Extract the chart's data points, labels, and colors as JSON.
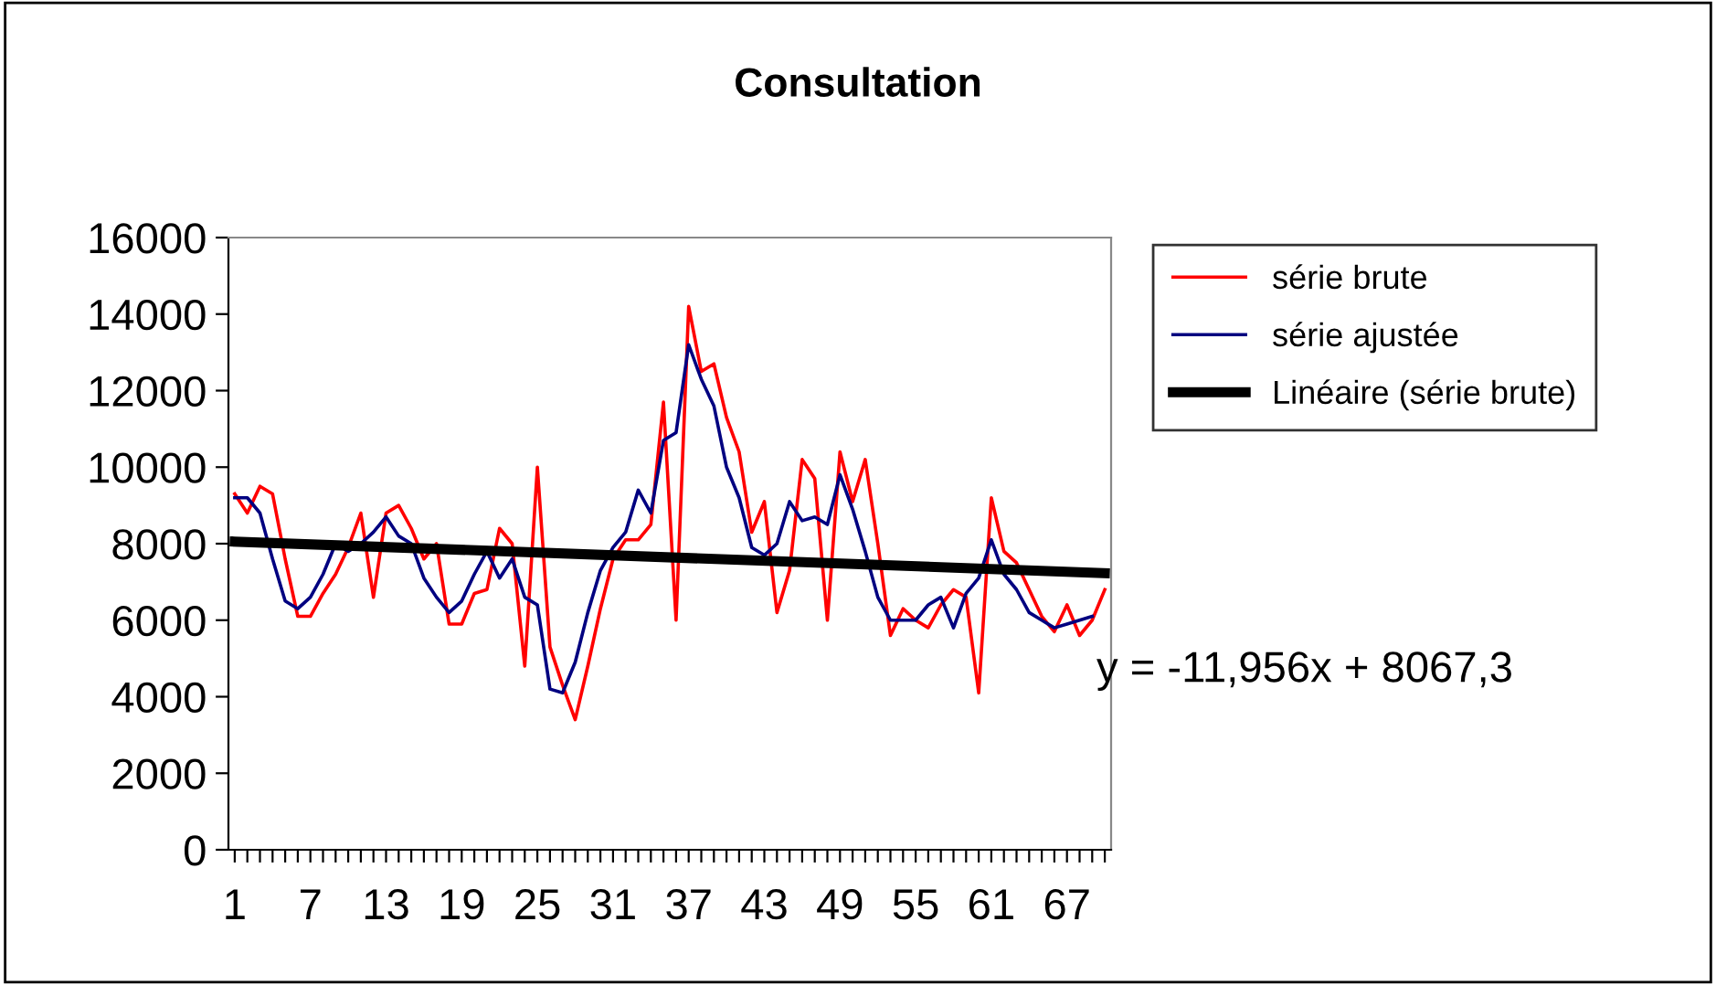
{
  "chart_data": {
    "type": "line",
    "title": "Consultation",
    "x": [
      1,
      2,
      3,
      4,
      5,
      6,
      7,
      8,
      9,
      10,
      11,
      12,
      13,
      14,
      15,
      16,
      17,
      18,
      19,
      20,
      21,
      22,
      23,
      24,
      25,
      26,
      27,
      28,
      29,
      30,
      31,
      32,
      33,
      34,
      35,
      36,
      37,
      38,
      39,
      40,
      41,
      42,
      43,
      44,
      45,
      46,
      47,
      48,
      49,
      50,
      51,
      52,
      53,
      54,
      55,
      56,
      57,
      58,
      59,
      60,
      61,
      62,
      63,
      64,
      65,
      66,
      67,
      68,
      69,
      70
    ],
    "xlim": [
      0.5,
      70.5
    ],
    "xticks": [
      1,
      {
        "value": 2,
        "label": null
      },
      {
        "value": 3,
        "label": null
      },
      {
        "value": 4,
        "label": null
      },
      {
        "value": 5,
        "label": null
      },
      {
        "value": 6,
        "label": null
      },
      7,
      {
        "value": 8,
        "label": null
      },
      {
        "value": 9,
        "label": null
      },
      {
        "value": 10,
        "label": null
      },
      {
        "value": 11,
        "label": null
      },
      {
        "value": 12,
        "label": null
      },
      13,
      {
        "value": 14,
        "label": null
      },
      {
        "value": 15,
        "label": null
      },
      {
        "value": 16,
        "label": null
      },
      {
        "value": 17,
        "label": null
      },
      {
        "value": 18,
        "label": null
      },
      19,
      {
        "value": 20,
        "label": null
      },
      {
        "value": 21,
        "label": null
      },
      {
        "value": 22,
        "label": null
      },
      {
        "value": 23,
        "label": null
      },
      {
        "value": 24,
        "label": null
      },
      25,
      {
        "value": 26,
        "label": null
      },
      {
        "value": 27,
        "label": null
      },
      {
        "value": 28,
        "label": null
      },
      {
        "value": 29,
        "label": null
      },
      {
        "value": 30,
        "label": null
      },
      31,
      {
        "value": 32,
        "label": null
      },
      {
        "value": 33,
        "label": null
      },
      {
        "value": 34,
        "label": null
      },
      {
        "value": 35,
        "label": null
      },
      {
        "value": 36,
        "label": null
      },
      37,
      {
        "value": 38,
        "label": null
      },
      {
        "value": 39,
        "label": null
      },
      {
        "value": 40,
        "label": null
      },
      {
        "value": 41,
        "label": null
      },
      {
        "value": 42,
        "label": null
      },
      43,
      {
        "value": 44,
        "label": null
      },
      {
        "value": 45,
        "label": null
      },
      {
        "value": 46,
        "label": null
      },
      {
        "value": 47,
        "label": null
      },
      {
        "value": 48,
        "label": null
      },
      49,
      {
        "value": 50,
        "label": null
      },
      {
        "value": 51,
        "label": null
      },
      {
        "value": 52,
        "label": null
      },
      {
        "value": 53,
        "label": null
      },
      {
        "value": 54,
        "label": null
      },
      55,
      {
        "value": 56,
        "label": null
      },
      {
        "value": 57,
        "label": null
      },
      {
        "value": 58,
        "label": null
      },
      {
        "value": 59,
        "label": null
      },
      {
        "value": 60,
        "label": null
      },
      61,
      {
        "value": 62,
        "label": null
      },
      {
        "value": 63,
        "label": null
      },
      {
        "value": 64,
        "label": null
      },
      {
        "value": 65,
        "label": null
      },
      {
        "value": 66,
        "label": null
      },
      67,
      {
        "value": 68,
        "label": null
      },
      {
        "value": 69,
        "label": null
      },
      {
        "value": 70,
        "label": null
      }
    ],
    "ylim": [
      0,
      16000
    ],
    "yticks": [
      0,
      2000,
      4000,
      6000,
      8000,
      10000,
      12000,
      14000,
      16000
    ],
    "grid": false,
    "legend": "right",
    "series": [
      {
        "name": "série brute",
        "color": "#ff0000",
        "values": [
          9300,
          8800,
          9500,
          9300,
          7600,
          6100,
          6100,
          6700,
          7200,
          7900,
          8800,
          6600,
          8800,
          9000,
          8400,
          7600,
          8000,
          5900,
          5900,
          6700,
          6800,
          8400,
          8000,
          4800,
          10000,
          5300,
          4300,
          3400,
          4800,
          6300,
          7600,
          8100,
          8100,
          8500,
          11700,
          6000,
          14200,
          12500,
          12700,
          11300,
          10400,
          8300,
          9100,
          6200,
          7300,
          10200,
          9700,
          6000,
          10400,
          9100,
          10200,
          8000,
          5600,
          6300,
          6000,
          5800,
          6400,
          6800,
          6600,
          4100,
          9200,
          7800,
          7500,
          6800,
          6100,
          5700,
          6400,
          5600,
          6000,
          6800
        ]
      },
      {
        "name": "série ajustée",
        "color": "#000080",
        "values": [
          9200,
          9200,
          8800,
          7600,
          6500,
          6300,
          6600,
          7200,
          8000,
          7800,
          8000,
          8300,
          8700,
          8200,
          8000,
          7100,
          6600,
          6200,
          6500,
          7200,
          7800,
          7100,
          7600,
          6600,
          6400,
          4200,
          4100,
          4900,
          6200,
          7300,
          7900,
          8300,
          9400,
          8800,
          10700,
          10900,
          13200,
          12300,
          11600,
          10000,
          9200,
          7900,
          7700,
          8000,
          9100,
          8600,
          8700,
          8500,
          9800,
          8900,
          7800,
          6600,
          6000,
          6000,
          6000,
          6400,
          6600,
          5800,
          6700,
          7100,
          8100,
          7200,
          6800,
          6200,
          6000,
          5800,
          5900,
          6000,
          6100,
          null
        ]
      },
      {
        "name": "Linéaire (série brute)",
        "color": "#000000",
        "type": "line",
        "x": [
          1,
          70
        ],
        "values": [
          8055.3,
          7230.4
        ]
      }
    ],
    "annotations": [
      "y = -11,956x + 8067,3"
    ]
  }
}
